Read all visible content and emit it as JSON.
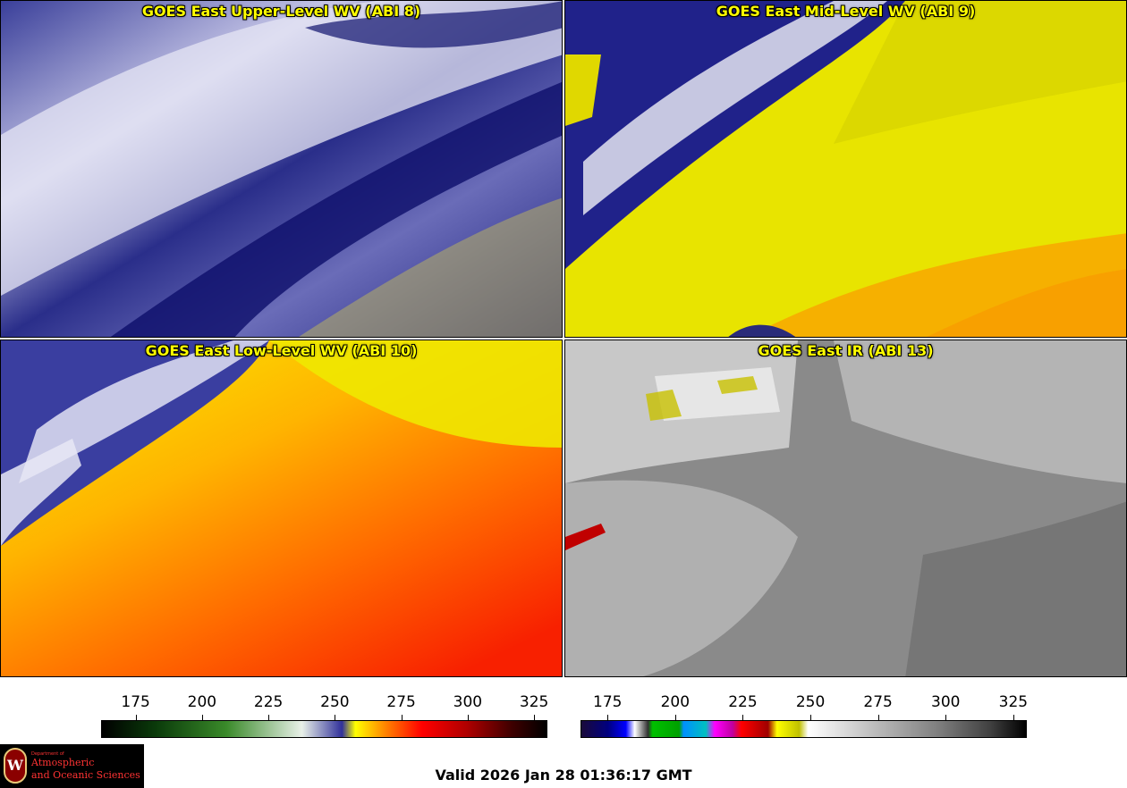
{
  "panels": [
    {
      "title": "GOES East Upper-Level WV (ABI 8)",
      "palette": "wv_upper"
    },
    {
      "title": "GOES East Mid-Level WV (ABI 9)",
      "palette": "wv_mid"
    },
    {
      "title": "GOES East Low-Level WV (ABI 10)",
      "palette": "wv_low"
    },
    {
      "title": "GOES East IR (ABI 13)",
      "palette": "ir"
    }
  ],
  "colorbar_left": {
    "ticks": [
      "175",
      "200",
      "225",
      "250",
      "275",
      "300",
      "325"
    ],
    "min": 162,
    "max": 330
  },
  "colorbar_right": {
    "ticks": [
      "175",
      "200",
      "225",
      "250",
      "275",
      "300",
      "325"
    ],
    "min": 165,
    "max": 330
  },
  "valid_time": "Valid 2026 Jan 28 01:36:17 GMT",
  "logo": {
    "dept": "Department of",
    "line1": "Atmospheric",
    "line2": "and Oceanic Sciences",
    "mark": "W"
  },
  "colors": {
    "coast": "#1a8a1a",
    "states": "#ff2020",
    "title": "#ffff00"
  }
}
